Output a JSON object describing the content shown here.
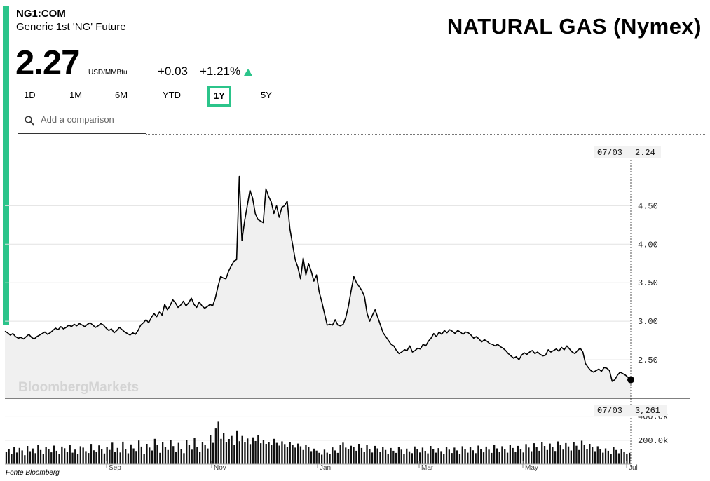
{
  "header": {
    "ticker": "NG1:COM",
    "subtitle": "Generic 1st 'NG' Future",
    "title": "NATURAL GAS (Nymex)",
    "price": "2.27",
    "unit": "USD/MMBtu",
    "change": "+0.03",
    "change_pct": "+1.21%",
    "trend_icon": "up-triangle-icon"
  },
  "tabs": [
    {
      "label": "1D",
      "active": false
    },
    {
      "label": "1M",
      "active": false
    },
    {
      "label": "6M",
      "active": false
    },
    {
      "label": "YTD",
      "active": false
    },
    {
      "label": "1Y",
      "active": true
    },
    {
      "label": "5Y",
      "active": false
    }
  ],
  "search": {
    "placeholder": "Add a comparison"
  },
  "watermark": "BloombergMarkets",
  "source": "Fonte Bloomberg",
  "colors": {
    "accent": "#2bc48a",
    "line": "#000000",
    "fill": "#f0f0f0"
  },
  "chart_data": [
    {
      "type": "line",
      "name": "price",
      "y_ticks": [
        "4.50",
        "4.00",
        "3.50",
        "3.00",
        "2.50"
      ],
      "ylim": [
        2.0,
        5.35
      ],
      "x_labels": [
        "Sep",
        "Nov",
        "Jan",
        "Mar",
        "May",
        "Jul"
      ],
      "cursor": {
        "date": "07/03",
        "value": "2.24"
      },
      "values": [
        2.87,
        2.85,
        2.82,
        2.84,
        2.8,
        2.78,
        2.79,
        2.77,
        2.8,
        2.83,
        2.79,
        2.77,
        2.8,
        2.82,
        2.84,
        2.86,
        2.83,
        2.85,
        2.88,
        2.91,
        2.89,
        2.93,
        2.9,
        2.92,
        2.95,
        2.93,
        2.96,
        2.94,
        2.97,
        2.95,
        2.93,
        2.96,
        2.98,
        2.95,
        2.92,
        2.94,
        2.97,
        2.95,
        2.91,
        2.88,
        2.9,
        2.85,
        2.88,
        2.92,
        2.89,
        2.86,
        2.84,
        2.82,
        2.85,
        2.83,
        2.88,
        2.95,
        2.98,
        3.02,
        2.98,
        3.05,
        3.1,
        3.06,
        3.12,
        3.08,
        3.22,
        3.15,
        3.2,
        3.28,
        3.24,
        3.18,
        3.21,
        3.26,
        3.2,
        3.24,
        3.3,
        3.22,
        3.18,
        3.25,
        3.2,
        3.17,
        3.19,
        3.22,
        3.2,
        3.3,
        3.45,
        3.58,
        3.56,
        3.55,
        3.65,
        3.72,
        3.78,
        3.8,
        4.88,
        4.05,
        4.3,
        4.5,
        4.7,
        4.6,
        4.4,
        4.32,
        4.3,
        4.28,
        4.72,
        4.62,
        4.55,
        4.4,
        4.5,
        4.35,
        4.48,
        4.5,
        4.56,
        4.2,
        4.0,
        3.8,
        3.7,
        3.55,
        3.82,
        3.6,
        3.75,
        3.65,
        3.52,
        3.6,
        3.38,
        3.25,
        3.1,
        2.95,
        2.96,
        2.95,
        3.02,
        2.95,
        2.94,
        2.96,
        3.05,
        3.2,
        3.4,
        3.58,
        3.5,
        3.45,
        3.4,
        3.32,
        3.1,
        3.0,
        3.08,
        3.15,
        3.05,
        2.95,
        2.85,
        2.8,
        2.75,
        2.7,
        2.68,
        2.62,
        2.58,
        2.6,
        2.63,
        2.62,
        2.68,
        2.6,
        2.62,
        2.65,
        2.64,
        2.7,
        2.68,
        2.74,
        2.78,
        2.84,
        2.8,
        2.86,
        2.83,
        2.88,
        2.85,
        2.89,
        2.87,
        2.84,
        2.88,
        2.86,
        2.83,
        2.86,
        2.85,
        2.82,
        2.78,
        2.8,
        2.77,
        2.73,
        2.76,
        2.74,
        2.71,
        2.7,
        2.68,
        2.7,
        2.67,
        2.65,
        2.62,
        2.58,
        2.55,
        2.52,
        2.54,
        2.5,
        2.56,
        2.59,
        2.57,
        2.6,
        2.62,
        2.58,
        2.6,
        2.57,
        2.55,
        2.56,
        2.63,
        2.6,
        2.62,
        2.64,
        2.61,
        2.66,
        2.63,
        2.68,
        2.64,
        2.6,
        2.58,
        2.62,
        2.65,
        2.6,
        2.45,
        2.4,
        2.36,
        2.34,
        2.36,
        2.38,
        2.35,
        2.4,
        2.39,
        2.36,
        2.22,
        2.24,
        2.3,
        2.34,
        2.32,
        2.3,
        2.27,
        2.24
      ]
    },
    {
      "type": "bar",
      "name": "volume",
      "y_ticks": [
        "400.0k",
        "200.0k"
      ],
      "ylim": [
        0,
        480000
      ],
      "cursor": {
        "date": "07/03",
        "value": "3,261"
      },
      "values": [
        105000,
        128000,
        84000,
        144000,
        97000,
        136000,
        115000,
        75000,
        152000,
        108000,
        131000,
        92000,
        160000,
        118000,
        86000,
        141000,
        124000,
        99000,
        155000,
        112000,
        88000,
        147000,
        133000,
        104000,
        164000,
        96000,
        122000,
        83000,
        150000,
        138000,
        109000,
        93000,
        169000,
        116000,
        101000,
        157000,
        128000,
        89000,
        143000,
        119000,
        180000,
        105000,
        136000,
        98000,
        188000,
        123000,
        91000,
        165000,
        132000,
        110000,
        198000,
        147000,
        87000,
        170000,
        139000,
        114000,
        212000,
        162000,
        95000,
        186000,
        143000,
        118000,
        205000,
        151000,
        103000,
        178000,
        127000,
        92000,
        201000,
        158000,
        121000,
        222000,
        146000,
        105000,
        184000,
        162000,
        131000,
        240000,
        178000,
        298000,
        355000,
        212000,
        260000,
        184000,
        211000,
        236000,
        158000,
        282000,
        192000,
        236000,
        183000,
        215000,
        168000,
        224000,
        193000,
        241000,
        175000,
        200000,
        170000,
        185000,
        162000,
        212000,
        178000,
        155000,
        191000,
        168000,
        141000,
        185000,
        162000,
        138000,
        172000,
        149000,
        118000,
        160000,
        141000,
        109000,
        130000,
        113000,
        95000,
        79000,
        121000,
        96000,
        85000,
        140000,
        115000,
        94000,
        162000,
        180000,
        138000,
        126000,
        154000,
        142000,
        112000,
        170000,
        135000,
        101000,
        162000,
        128000,
        97000,
        153000,
        132000,
        105000,
        146000,
        118000,
        88000,
        135000,
        112000,
        94000,
        142000,
        121000,
        85000,
        130000,
        107000,
        92000,
        148000,
        124000,
        98000,
        138000,
        111000,
        90000,
        152000,
        128000,
        96000,
        134000,
        109000,
        87000,
        146000,
        121000,
        93000,
        138000,
        115000,
        88000,
        150000,
        125000,
        96000,
        141000,
        116000,
        92000,
        155000,
        128000,
        99000,
        147000,
        121000,
        94000,
        158000,
        132000,
        102000,
        150000,
        124000,
        96000,
        162000,
        135000,
        104000,
        153000,
        127000,
        98000,
        168000,
        139000,
        108000,
        175000,
        146000,
        112000,
        182000,
        152000,
        118000,
        172000,
        144000,
        110000,
        190000,
        160000,
        122000,
        176000,
        148000,
        114000,
        185000,
        154000,
        118000,
        196000,
        162000,
        124000,
        170000,
        142000,
        108000,
        150000,
        124000,
        96000,
        132000,
        112000,
        88000,
        146000,
        118000,
        91000,
        126000,
        104000,
        82000,
        95000
      ]
    }
  ]
}
